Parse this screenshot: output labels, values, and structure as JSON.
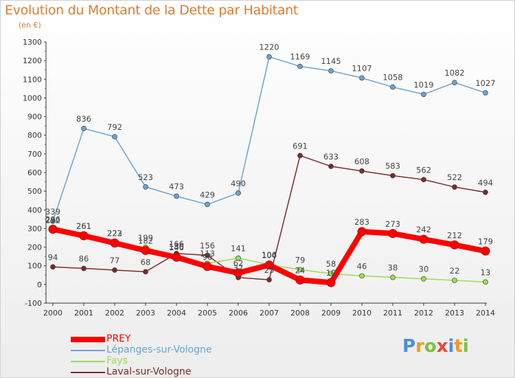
{
  "chart_data": {
    "type": "line",
    "title": "Evolution du Montant de la Dette par Habitant",
    "subtitle": "(en €)",
    "x": [
      "2000",
      "2001",
      "2002",
      "2003",
      "2004",
      "2005",
      "2006",
      "2007",
      "2008",
      "2009",
      "2010",
      "2011",
      "2012",
      "2013",
      "2014"
    ],
    "ylim": [
      -100,
      1300
    ],
    "yticks": [
      -100,
      0,
      100,
      200,
      300,
      400,
      500,
      600,
      700,
      800,
      900,
      1000,
      1100,
      1200,
      1300
    ],
    "grid": false,
    "legend_position": "bottom-left",
    "series": [
      {
        "name": "PREY",
        "color": "#ff0000",
        "values": [
          296,
          261,
          222,
          182,
          146,
          96,
          62,
          104,
          24,
          10,
          283,
          273,
          242,
          212,
          179
        ]
      },
      {
        "name": "Lépanges-sur-Vologne",
        "color": "#6aa3d0",
        "values": [
          339,
          836,
          792,
          523,
          473,
          429,
          490,
          1220,
          1169,
          1145,
          1107,
          1058,
          1019,
          1082,
          1027
        ]
      },
      {
        "name": "Fays",
        "color": "#99dd55",
        "values": [
          292,
          261,
          223,
          199,
          150,
          113,
          141,
          106,
          79,
          58,
          46,
          38,
          30,
          22,
          13
        ]
      },
      {
        "name": "Laval-sur-Vologne",
        "color": "#7a2a2a",
        "values": [
          94,
          86,
          77,
          68,
          166,
          156,
          37,
          25,
          691,
          633,
          608,
          583,
          562,
          522,
          494
        ]
      }
    ]
  },
  "legend": {
    "items": [
      "PREY",
      "Lépanges-sur-Vologne",
      "Fays",
      "Laval-sur-Vologne"
    ],
    "colors": [
      "#ff0000",
      "#6aa3d0",
      "#99dd55",
      "#7a2a2a"
    ]
  },
  "logo": {
    "letters": [
      "P",
      "r",
      "o",
      "x",
      "i",
      "t",
      "i"
    ],
    "colors": [
      "#4a90d9",
      "#f39a1e",
      "#7cc242",
      "#e8463a",
      "#4a90d9",
      "#f39a1e",
      "#7cc242"
    ]
  }
}
